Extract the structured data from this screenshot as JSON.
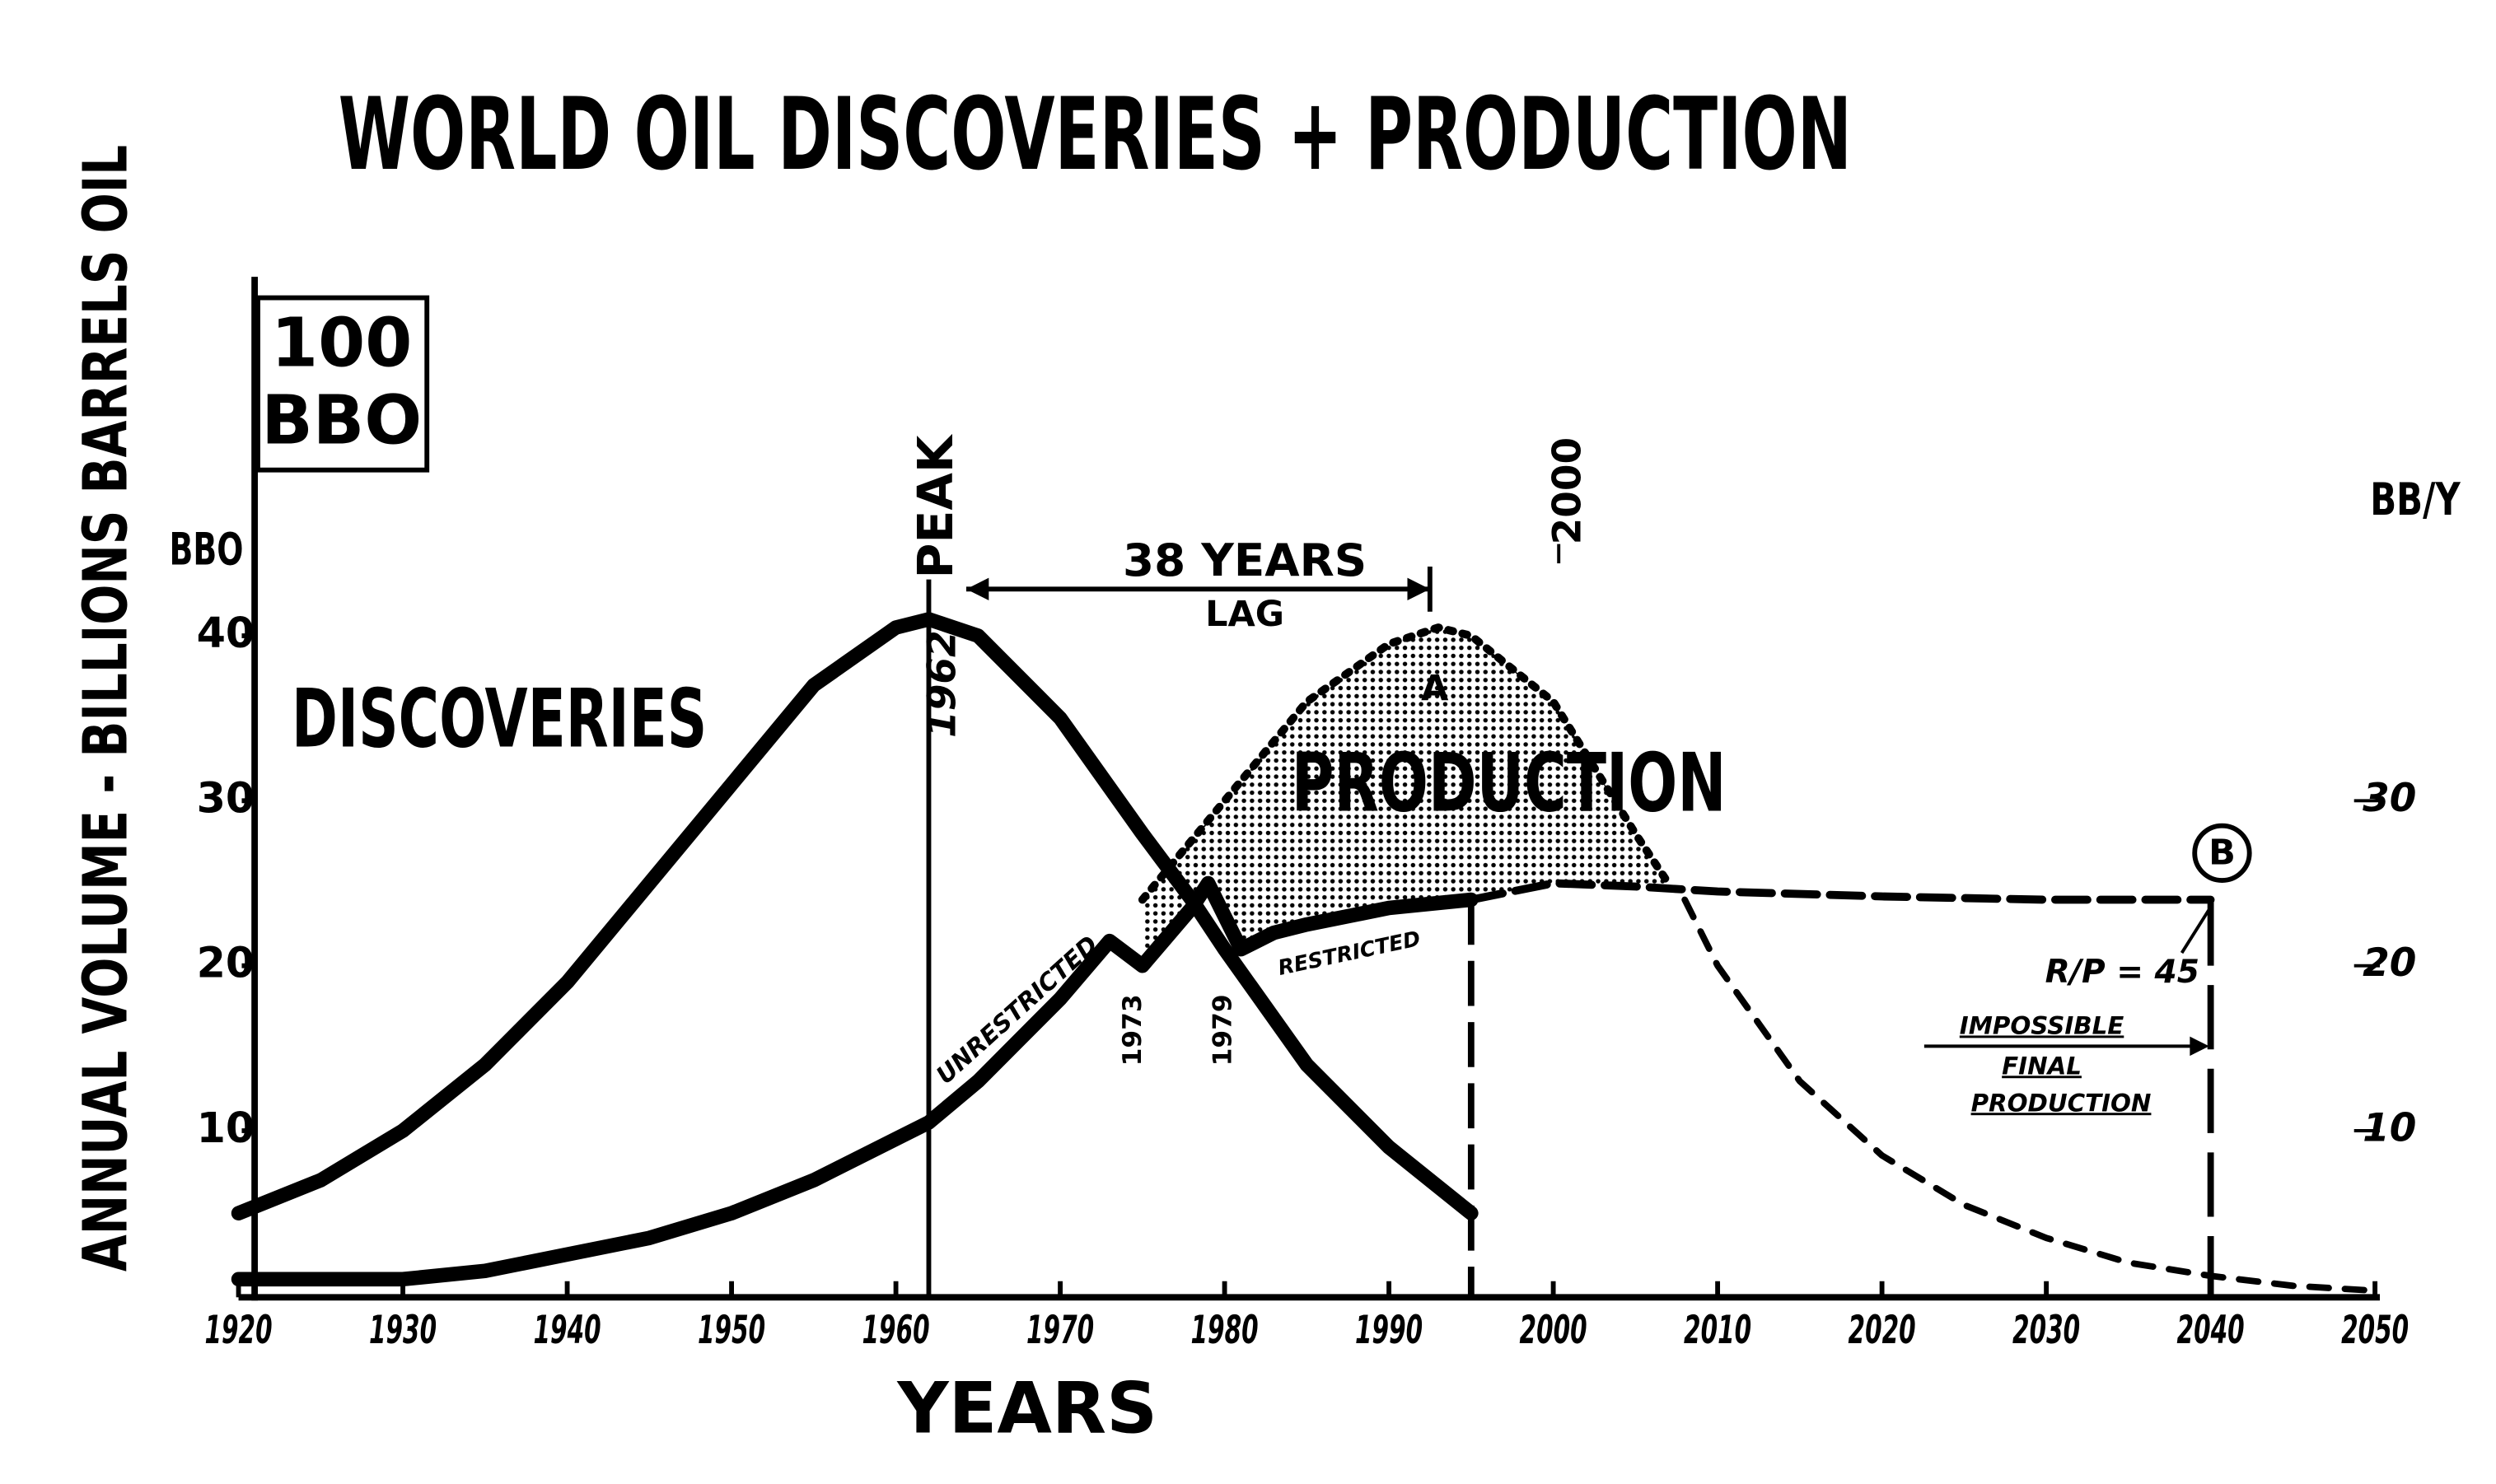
{
  "chart_data": {
    "type": "line",
    "title": "WORLD OIL DISCOVERIES + PRODUCTION",
    "x_label": "YEARS",
    "y_label": "ANNUAL VOLUME - BILLIONS BARRELS OIL",
    "y_unit": "BBO",
    "y2_unit": "BB/Y",
    "xlim": [
      1920,
      2050
    ],
    "xticks": [
      1920,
      1930,
      1940,
      1950,
      1960,
      1970,
      1980,
      1990,
      2000,
      2010,
      2020,
      2030,
      2040,
      2050
    ],
    "ylim": [
      0,
      60
    ],
    "yticks": [
      10,
      20,
      30,
      40
    ],
    "y2lim": [
      0,
      60
    ],
    "y2ticks": [
      10,
      20,
      30
    ],
    "vlines": [
      1962,
      1995,
      2040
    ],
    "series": [
      {
        "name": "DISCOVERIES",
        "color": "#000000",
        "style": "solid",
        "x": [
          1920,
          1925,
          1930,
          1935,
          1940,
          1945,
          1950,
          1955,
          1960,
          1962,
          1965,
          1970,
          1975,
          1978,
          1980,
          1985,
          1990,
          1995
        ],
        "values": [
          5,
          7,
          10,
          14,
          19,
          25,
          31,
          37,
          40.5,
          41,
          40,
          35,
          28,
          24,
          21,
          14,
          9,
          5
        ]
      },
      {
        "name": "PRODUCTION",
        "color": "#000000",
        "style": "solid",
        "x": [
          1920,
          1930,
          1935,
          1940,
          1945,
          1950,
          1955,
          1960,
          1962,
          1965,
          1970,
          1973,
          1975,
          1978,
          1979,
          1981,
          1983,
          1985,
          1990,
          1995
        ],
        "values": [
          1,
          1,
          1.5,
          2.5,
          3.5,
          5,
          7,
          9.5,
          10.5,
          13,
          18,
          21.5,
          20,
          23.5,
          25,
          21,
          22,
          22.5,
          23.5,
          24
        ]
      },
      {
        "color": "#000000",
        "style": "dotted",
        "x": [
          1975,
          1980,
          1985,
          1990,
          1993,
          1995,
          2000,
          2005,
          2007
        ],
        "values": [
          24,
          30,
          36,
          39.5,
          40.5,
          40,
          36,
          28,
          25
        ]
      },
      {
        "color": "#000000",
        "style": "dashed",
        "x": [
          1995,
          2000,
          2005,
          2010,
          2020,
          2030,
          2040
        ],
        "values": [
          24,
          25,
          24.8,
          24.5,
          24.2,
          24,
          24
        ]
      },
      {
        "color": "#000000",
        "style": "dashed-thin",
        "x": [
          2008,
          2010,
          2015,
          2020,
          2025,
          2030,
          2035,
          2040,
          2045,
          2050
        ],
        "values": [
          24,
          20,
          13,
          8.5,
          5.5,
          3.5,
          2,
          1.2,
          0.6,
          0.3
        ]
      }
    ],
    "annotations": [
      "100",
      "BBO",
      "PEAK",
      "38 YEARS",
      "LAG",
      "2000",
      "A",
      "B",
      "R/P = 45",
      "IMPOSSIBLE",
      "FINAL",
      "PRODUCTION",
      "UNRESTRICTED",
      "RESTRICTED",
      "1973",
      "1979"
    ]
  }
}
